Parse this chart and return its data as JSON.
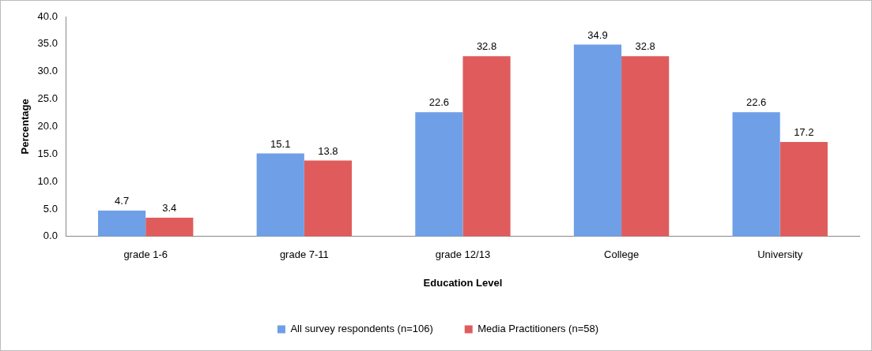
{
  "chart_data": {
    "type": "bar",
    "xlabel": "Education Level",
    "ylabel": "Percentage",
    "categories": [
      "grade 1-6",
      "grade 7-11",
      "grade 12/13",
      "College",
      "University"
    ],
    "series": [
      {
        "name": "All survey respondents (n=106)",
        "color": "#6f9fe6",
        "values": [
          4.7,
          15.1,
          22.6,
          34.9,
          22.6
        ]
      },
      {
        "name": "Media Practitioners (n=58)",
        "color": "#e05c5c",
        "values": [
          3.4,
          13.8,
          32.8,
          32.8,
          17.2
        ]
      }
    ],
    "ylim": [
      0,
      40
    ],
    "yticks": [
      {
        "value": 0,
        "label": "0.0"
      },
      {
        "value": 5,
        "label": "5.0"
      },
      {
        "value": 10,
        "label": "10.0"
      },
      {
        "value": 15,
        "label": "15.0"
      },
      {
        "value": 20,
        "label": "20.0"
      },
      {
        "value": 25,
        "label": "25.0"
      },
      {
        "value": 30,
        "label": "30.0"
      },
      {
        "value": 35,
        "label": "35.0"
      },
      {
        "value": 40,
        "label": "40.0"
      }
    ],
    "grid": false,
    "legend": "bottom",
    "data_labels": true
  }
}
